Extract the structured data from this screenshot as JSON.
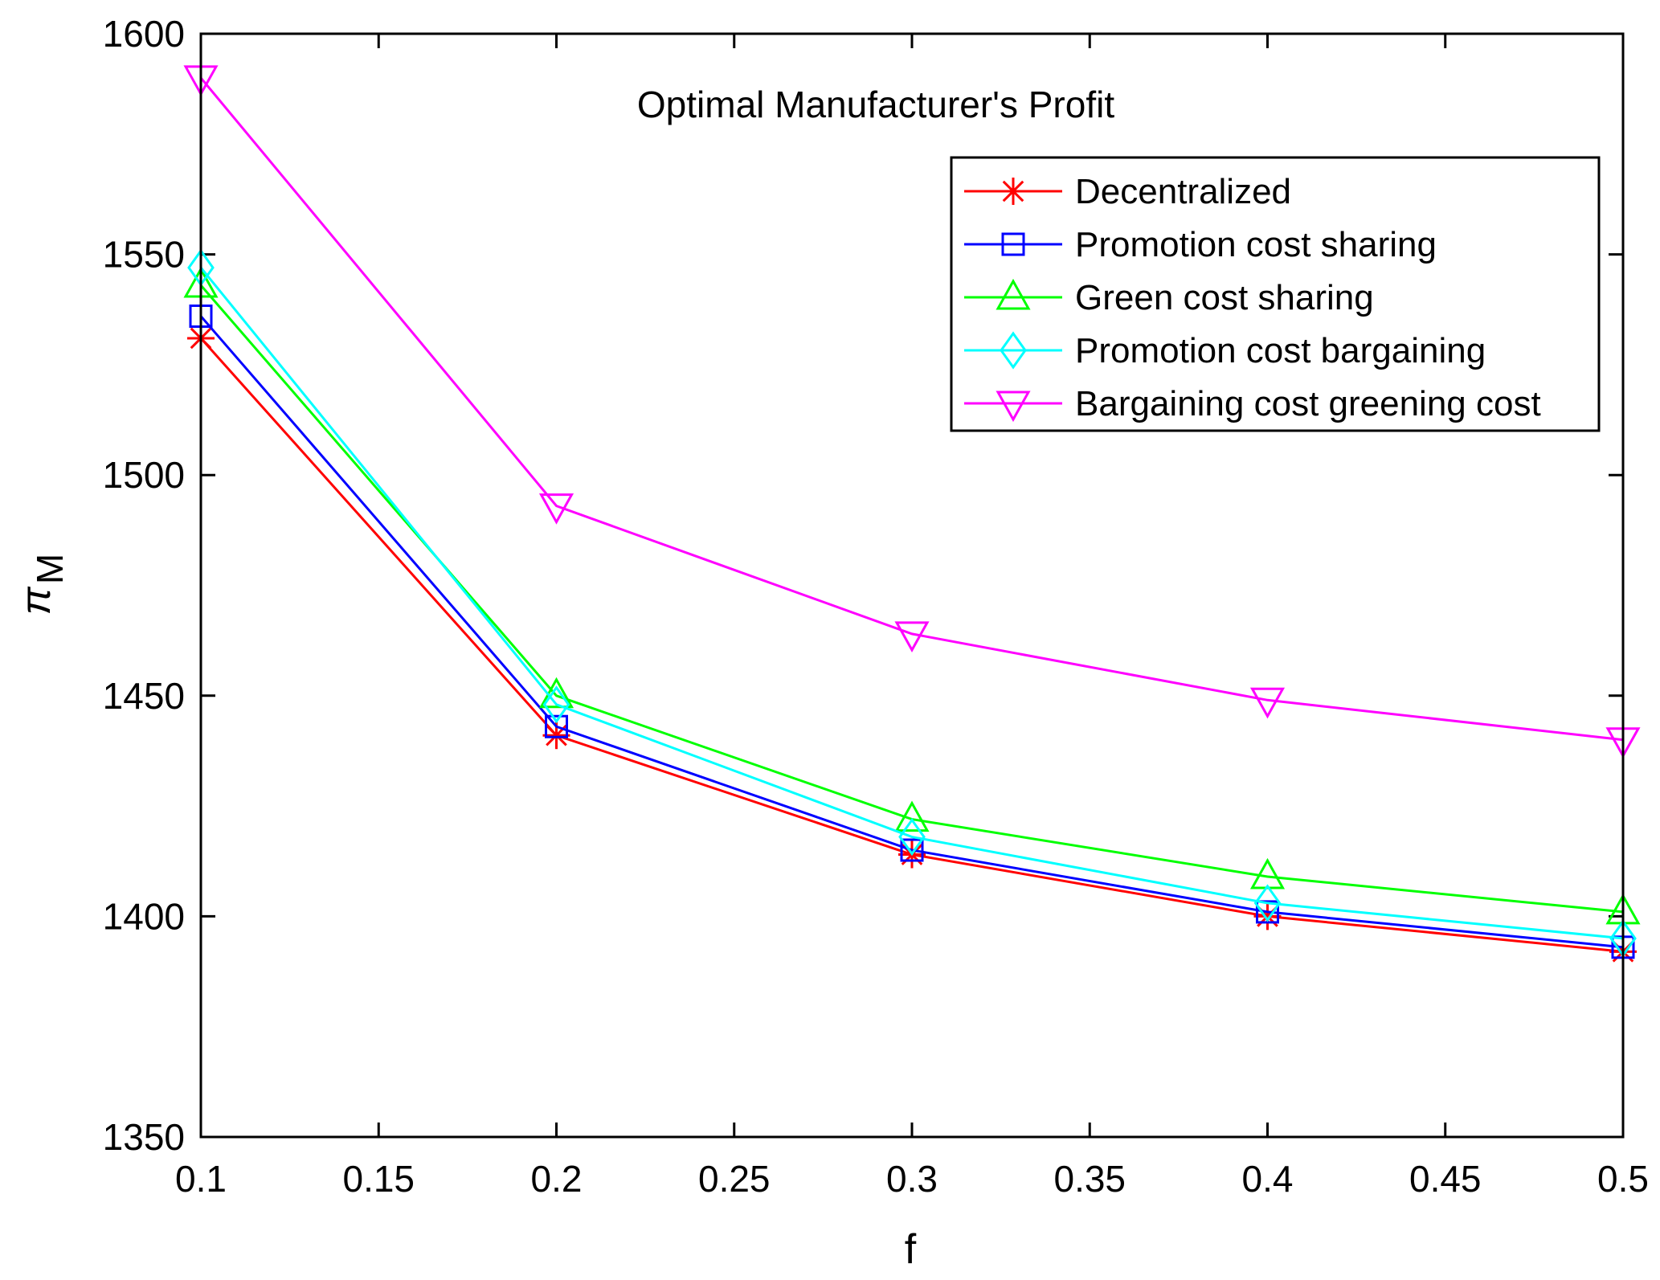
{
  "chart_data": {
    "type": "line",
    "title": "Optimal Manufacturer's Profit",
    "xlabel": "f",
    "ylabel": "π",
    "ylabel_subscript": "M",
    "x": [
      0.1,
      0.2,
      0.3,
      0.4,
      0.5
    ],
    "xlim": [
      0.1,
      0.5
    ],
    "ylim": [
      1350,
      1600
    ],
    "xticks": [
      0.1,
      0.15,
      0.2,
      0.25,
      0.3,
      0.35,
      0.4,
      0.45,
      0.5
    ],
    "xtick_labels": [
      "0.1",
      "0.15",
      "0.2",
      "0.25",
      "0.3",
      "0.35",
      "0.4",
      "0.45",
      "0.5"
    ],
    "yticks": [
      1350,
      1400,
      1450,
      1500,
      1550,
      1600
    ],
    "ytick_labels": [
      "1350",
      "1400",
      "1450",
      "1500",
      "1550",
      "1600"
    ],
    "grid": false,
    "legend_position": "top-right",
    "series": [
      {
        "name": "Decentralized",
        "color": "#ff0000",
        "marker": "asterisk",
        "values": [
          1531,
          1441,
          1414,
          1400,
          1392
        ]
      },
      {
        "name": "Promotion cost sharing",
        "color": "#0000ff",
        "marker": "square",
        "values": [
          1536,
          1443,
          1415,
          1401,
          1393
        ]
      },
      {
        "name": "Green cost sharing",
        "color": "#00ff00",
        "marker": "triangle-up",
        "values": [
          1543,
          1450,
          1422,
          1409,
          1401
        ]
      },
      {
        "name": "Promotion cost bargaining",
        "color": "#00ffff",
        "marker": "diamond",
        "values": [
          1547,
          1448,
          1418,
          1403,
          1395
        ]
      },
      {
        "name": "Bargaining cost greening cost",
        "color": "#ff00ff",
        "marker": "triangle-down",
        "values": [
          1590,
          1493,
          1464,
          1449,
          1440
        ]
      }
    ]
  }
}
